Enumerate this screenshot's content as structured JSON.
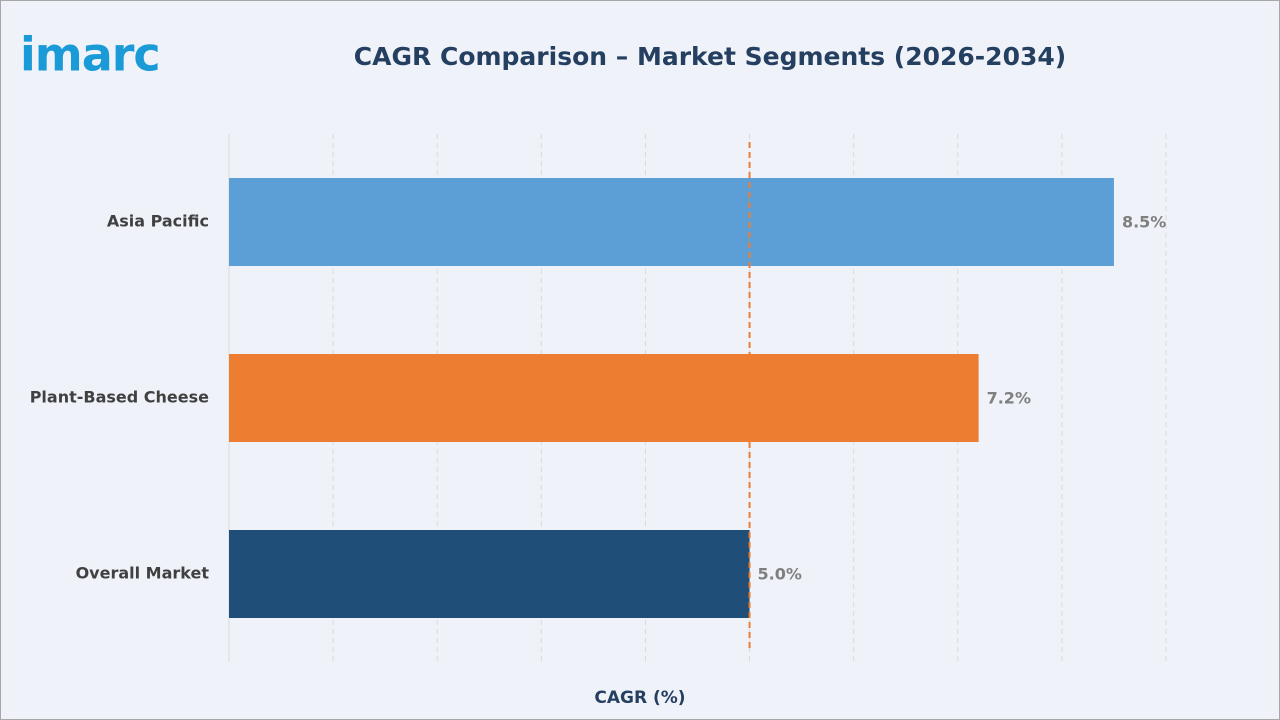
{
  "brand": "imarc",
  "chart_data": {
    "type": "hbar",
    "title": "CAGR Comparison – Market Segments (2026-2034)",
    "x_label": "CAGR (%)",
    "categories": [
      "Asia Pacific",
      "Plant-Based Cheese",
      "Overall Market"
    ],
    "values": [
      8.5,
      7.2,
      5.0
    ],
    "value_labels": [
      "8.5%",
      "7.2%",
      "5.0%"
    ],
    "colors": [
      "#5b9fd6",
      "#ed7d31",
      "#1f4e79"
    ],
    "xlim": [
      0,
      9
    ],
    "xticks": [
      0,
      1,
      2,
      3,
      4,
      5,
      6,
      7,
      8,
      9
    ],
    "grid": true,
    "reference_line": {
      "value": 5.0,
      "color": "#ed7d31"
    }
  }
}
